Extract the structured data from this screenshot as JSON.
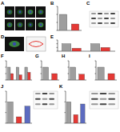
{
  "panel_labels": [
    "A",
    "B",
    "C",
    "D",
    "E",
    "F",
    "G",
    "H",
    "I",
    "J",
    "K"
  ],
  "chart_data": [
    {
      "type": "bar",
      "categories": [
        null,
        null
      ],
      "values": [
        1,
        0.4
      ],
      "colors": [
        "#9e9e9e",
        "#e53935"
      ],
      "ylim": [
        0,
        1.5
      ],
      "yticks": [
        0,
        0.5,
        1,
        1.5
      ],
      "tick_labels": false
    },
    {
      "type": "bar",
      "categories": [
        null,
        null
      ],
      "series": [
        {
          "color": "#9e9e9e",
          "values": [
            1,
            1
          ]
        },
        {
          "color": "#e53935",
          "values": [
            0.4,
            0.5
          ]
        }
      ],
      "ylim": [
        0,
        1.5
      ],
      "yticks": [
        0,
        0.5,
        1,
        1.5
      ],
      "tick_labels": false
    },
    {
      "type": "bar",
      "categories": [
        null,
        null,
        null
      ],
      "series": [
        {
          "color": "#9e9e9e",
          "values": [
            1,
            1,
            1
          ]
        },
        {
          "color": "#e53935",
          "values": [
            0.5,
            0.4,
            0.6
          ]
        }
      ],
      "ylim": [
        0,
        1.5
      ],
      "yticks": [
        0,
        0.5,
        1,
        1.5
      ],
      "tick_labels": false
    },
    {
      "type": "bar",
      "categories": [
        null,
        null
      ],
      "values": [
        1,
        0.5
      ],
      "colors": [
        "#9e9e9e",
        "#e53935"
      ],
      "ylim": [
        0,
        1.5
      ],
      "yticks": [
        0,
        0.5,
        1,
        1.5
      ],
      "tick_labels": false
    },
    {
      "type": "bar",
      "categories": [
        null,
        null
      ],
      "values": [
        1,
        0.45
      ],
      "colors": [
        "#9e9e9e",
        "#e53935"
      ],
      "ylim": [
        0,
        1.5
      ],
      "yticks": [
        0,
        0.5,
        1,
        1.5
      ],
      "tick_labels": false
    },
    {
      "type": "bar",
      "categories": [
        null,
        null
      ],
      "values": [
        1,
        0.5
      ],
      "colors": [
        "#9e9e9e",
        "#e53935"
      ],
      "ylim": [
        0,
        1.5
      ],
      "yticks": [
        0,
        0.5,
        1,
        1.5
      ],
      "tick_labels": false
    },
    {
      "type": "bar",
      "categories": [
        null,
        null,
        null
      ],
      "values": [
        1,
        0.3,
        0.8
      ],
      "colors": [
        "#9e9e9e",
        "#e53935",
        "#5c6bc0"
      ],
      "ylim": [
        0,
        1.5
      ],
      "yticks": [
        0,
        0.5,
        1,
        1.5
      ],
      "tick_labels": false
    },
    {
      "type": "bar",
      "categories": [
        null,
        null,
        null
      ],
      "values": [
        1,
        0.4,
        0.9
      ],
      "colors": [
        "#9e9e9e",
        "#e53935",
        "#5c6bc0"
      ],
      "ylim": [
        0,
        1.5
      ],
      "yticks": [
        0,
        0.5,
        1,
        1.5
      ],
      "tick_labels": false
    }
  ]
}
